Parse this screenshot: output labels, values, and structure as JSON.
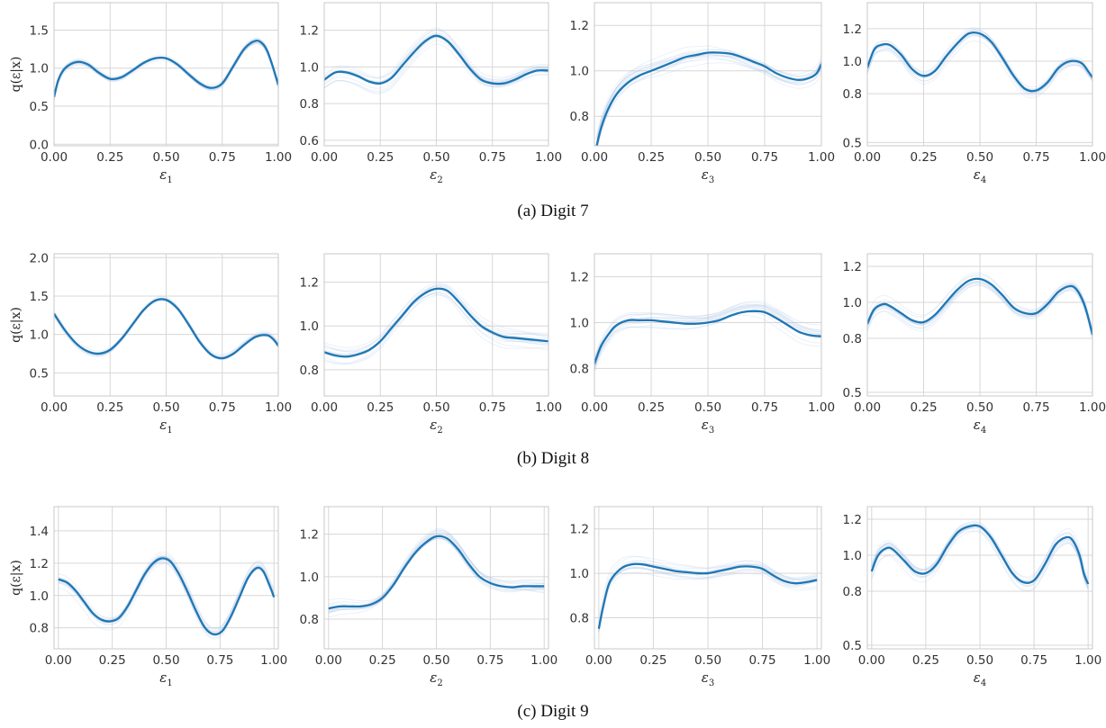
{
  "chart_data": [
    {
      "group": "Digit 7",
      "caption": "(a) Digit 7",
      "panels": [
        {
          "type": "line",
          "xlabel": "ε",
          "xsub": "1",
          "ylabel": "q(ε|x)",
          "xlim": [
            0,
            1
          ],
          "ylim": [
            -0.02,
            1.86
          ],
          "xticks": [
            "0.00",
            "0.25",
            "0.50",
            "0.75",
            "1.00"
          ],
          "yticks": [
            "0.0",
            "0.5",
            "1.0",
            "1.5"
          ],
          "series": [
            {
              "x": [
                0,
                0.02,
                0.05,
                0.1,
                0.15,
                0.2,
                0.25,
                0.3,
                0.35,
                0.4,
                0.45,
                0.5,
                0.55,
                0.6,
                0.65,
                0.7,
                0.75,
                0.8,
                0.85,
                0.9,
                0.93,
                0.95,
                0.97,
                0.99,
                1.0
              ],
              "y": [
                0.62,
                0.85,
                1.0,
                1.08,
                1.05,
                0.94,
                0.86,
                0.88,
                0.97,
                1.07,
                1.13,
                1.13,
                1.05,
                0.92,
                0.8,
                0.74,
                0.8,
                1.03,
                1.26,
                1.36,
                1.32,
                1.23,
                1.07,
                0.88,
                0.78
              ]
            }
          ]
        },
        {
          "type": "line",
          "xlabel": "ε",
          "xsub": "2",
          "ylabel": "",
          "xlim": [
            0,
            1
          ],
          "ylim": [
            0.57,
            1.35
          ],
          "xticks": [
            "0.00",
            "0.25",
            "0.50",
            "0.75",
            "1.00"
          ],
          "yticks": [
            "0.6",
            "0.8",
            "1.0",
            "1.2"
          ],
          "series": [
            {
              "x": [
                0,
                0.05,
                0.1,
                0.15,
                0.2,
                0.25,
                0.3,
                0.35,
                0.4,
                0.45,
                0.5,
                0.55,
                0.6,
                0.65,
                0.7,
                0.75,
                0.8,
                0.85,
                0.9,
                0.95,
                1.0
              ],
              "y": [
                0.93,
                0.97,
                0.97,
                0.95,
                0.92,
                0.91,
                0.94,
                1.01,
                1.08,
                1.14,
                1.17,
                1.14,
                1.07,
                0.99,
                0.93,
                0.91,
                0.91,
                0.93,
                0.96,
                0.98,
                0.98
              ]
            }
          ]
        },
        {
          "type": "line",
          "xlabel": "ε",
          "xsub": "3",
          "ylabel": "",
          "xlim": [
            0,
            1
          ],
          "ylim": [
            0.67,
            1.3
          ],
          "xticks": [
            "0.00",
            "0.25",
            "0.50",
            "0.75",
            "1.00"
          ],
          "yticks": [
            "0.8",
            "1.0",
            "1.2"
          ],
          "series": [
            {
              "x": [
                0.01,
                0.03,
                0.06,
                0.1,
                0.15,
                0.2,
                0.25,
                0.3,
                0.35,
                0.4,
                0.45,
                0.5,
                0.55,
                0.6,
                0.65,
                0.7,
                0.75,
                0.8,
                0.85,
                0.9,
                0.95,
                0.98,
                1.0
              ],
              "y": [
                0.67,
                0.75,
                0.83,
                0.9,
                0.95,
                0.98,
                1.0,
                1.02,
                1.04,
                1.06,
                1.07,
                1.08,
                1.08,
                1.075,
                1.06,
                1.04,
                1.02,
                0.99,
                0.97,
                0.96,
                0.97,
                0.99,
                1.03
              ]
            }
          ]
        },
        {
          "type": "line",
          "xlabel": "ε",
          "xsub": "4",
          "ylabel": "",
          "xlim": [
            0,
            1
          ],
          "ylim": [
            0.48,
            1.36
          ],
          "xticks": [
            "0.00",
            "0.25",
            "0.50",
            "0.75",
            "1.00"
          ],
          "yticks": [
            "0.5",
            "0.8",
            "1.0",
            "1.2"
          ],
          "series": [
            {
              "x": [
                0,
                0.03,
                0.06,
                0.1,
                0.15,
                0.2,
                0.25,
                0.3,
                0.35,
                0.4,
                0.45,
                0.5,
                0.55,
                0.6,
                0.65,
                0.7,
                0.75,
                0.8,
                0.85,
                0.9,
                0.95,
                0.98,
                1.0
              ],
              "y": [
                0.96,
                1.07,
                1.1,
                1.1,
                1.04,
                0.95,
                0.91,
                0.94,
                1.03,
                1.11,
                1.17,
                1.17,
                1.12,
                1.02,
                0.91,
                0.83,
                0.82,
                0.87,
                0.96,
                1.0,
                0.99,
                0.94,
                0.9
              ]
            }
          ]
        }
      ]
    },
    {
      "group": "Digit 8",
      "caption": "(b) Digit 8",
      "panels": [
        {
          "type": "line",
          "xlabel": "ε",
          "xsub": "1",
          "ylabel": "q(ε|x)",
          "xlim": [
            0,
            1
          ],
          "ylim": [
            0.2,
            2.05
          ],
          "xticks": [
            "0.00",
            "0.25",
            "0.50",
            "0.75",
            "1.00"
          ],
          "yticks": [
            "0.5",
            "1.0",
            "1.5",
            "2.0"
          ],
          "series": [
            {
              "x": [
                0,
                0.05,
                0.1,
                0.15,
                0.2,
                0.25,
                0.3,
                0.35,
                0.4,
                0.45,
                0.5,
                0.55,
                0.6,
                0.65,
                0.7,
                0.75,
                0.8,
                0.85,
                0.9,
                0.95,
                0.98,
                1.0
              ],
              "y": [
                1.27,
                1.05,
                0.88,
                0.78,
                0.75,
                0.8,
                0.94,
                1.13,
                1.32,
                1.44,
                1.45,
                1.34,
                1.13,
                0.9,
                0.74,
                0.69,
                0.75,
                0.87,
                0.97,
                0.99,
                0.93,
                0.85
              ]
            }
          ]
        },
        {
          "type": "line",
          "xlabel": "ε",
          "xsub": "2",
          "ylabel": "",
          "xlim": [
            0,
            1
          ],
          "ylim": [
            0.68,
            1.33
          ],
          "xticks": [
            "0.00",
            "0.25",
            "0.50",
            "0.75",
            "1.00"
          ],
          "yticks": [
            "0.8",
            "1.0",
            "1.2"
          ],
          "series": [
            {
              "x": [
                0,
                0.05,
                0.1,
                0.15,
                0.2,
                0.25,
                0.3,
                0.35,
                0.4,
                0.45,
                0.5,
                0.55,
                0.6,
                0.65,
                0.7,
                0.75,
                0.8,
                0.85,
                0.9,
                0.95,
                1.0
              ],
              "y": [
                0.88,
                0.865,
                0.86,
                0.87,
                0.89,
                0.93,
                0.99,
                1.05,
                1.11,
                1.15,
                1.17,
                1.16,
                1.11,
                1.05,
                1.0,
                0.97,
                0.95,
                0.945,
                0.94,
                0.935,
                0.93
              ]
            }
          ]
        },
        {
          "type": "line",
          "xlabel": "ε",
          "xsub": "3",
          "ylabel": "",
          "xlim": [
            0,
            1
          ],
          "ylim": [
            0.68,
            1.3
          ],
          "xticks": [
            "0.00",
            "0.25",
            "0.50",
            "0.75",
            "1.00"
          ],
          "yticks": [
            "0.8",
            "1.0",
            "1.2"
          ],
          "series": [
            {
              "x": [
                0,
                0.03,
                0.07,
                0.1,
                0.15,
                0.2,
                0.25,
                0.3,
                0.35,
                0.4,
                0.45,
                0.5,
                0.55,
                0.6,
                0.65,
                0.7,
                0.75,
                0.8,
                0.85,
                0.9,
                0.95,
                1.0
              ],
              "y": [
                0.82,
                0.9,
                0.96,
                0.99,
                1.01,
                1.01,
                1.01,
                1.005,
                1.0,
                0.995,
                0.995,
                1.0,
                1.01,
                1.03,
                1.045,
                1.05,
                1.045,
                1.02,
                0.99,
                0.96,
                0.945,
                0.94
              ]
            }
          ]
        },
        {
          "type": "line",
          "xlabel": "ε",
          "xsub": "4",
          "ylabel": "",
          "xlim": [
            0,
            1
          ],
          "ylim": [
            0.48,
            1.27
          ],
          "xticks": [
            "0.00",
            "0.25",
            "0.50",
            "0.75",
            "1.00"
          ],
          "yticks": [
            "0.5",
            "0.8",
            "1.0",
            "1.2"
          ],
          "series": [
            {
              "x": [
                0,
                0.03,
                0.07,
                0.1,
                0.15,
                0.2,
                0.25,
                0.3,
                0.35,
                0.4,
                0.45,
                0.5,
                0.55,
                0.6,
                0.65,
                0.7,
                0.75,
                0.8,
                0.85,
                0.9,
                0.93,
                0.96,
                0.98,
                1.0
              ],
              "y": [
                0.88,
                0.96,
                0.99,
                0.98,
                0.94,
                0.9,
                0.89,
                0.93,
                1.0,
                1.07,
                1.12,
                1.13,
                1.1,
                1.04,
                0.97,
                0.94,
                0.94,
                0.99,
                1.06,
                1.09,
                1.07,
                1.0,
                0.92,
                0.82
              ]
            }
          ]
        }
      ]
    },
    {
      "group": "Digit 9",
      "caption": "(c) Digit 9",
      "panels": [
        {
          "type": "line",
          "xlabel": "ε",
          "xsub": "1",
          "ylabel": "q(ε|x)",
          "xlim": [
            -0.02,
            1.02
          ],
          "ylim": [
            0.67,
            1.55
          ],
          "xticks": [
            "0.00",
            "0.25",
            "0.50",
            "0.75",
            "1.00"
          ],
          "yticks": [
            "0.8",
            "1.0",
            "1.2",
            "1.4"
          ],
          "series": [
            {
              "x": [
                0,
                0.04,
                0.08,
                0.12,
                0.16,
                0.2,
                0.24,
                0.28,
                0.32,
                0.36,
                0.4,
                0.44,
                0.48,
                0.52,
                0.56,
                0.6,
                0.64,
                0.68,
                0.72,
                0.76,
                0.8,
                0.84,
                0.88,
                0.92,
                0.95,
                0.98,
                1.0
              ],
              "y": [
                1.1,
                1.08,
                1.03,
                0.96,
                0.89,
                0.85,
                0.84,
                0.86,
                0.93,
                1.03,
                1.13,
                1.2,
                1.23,
                1.21,
                1.13,
                1.02,
                0.9,
                0.8,
                0.76,
                0.78,
                0.87,
                0.99,
                1.11,
                1.17,
                1.15,
                1.06,
                0.99
              ]
            }
          ]
        },
        {
          "type": "line",
          "xlabel": "ε",
          "xsub": "2",
          "ylabel": "",
          "xlim": [
            -0.02,
            1.02
          ],
          "ylim": [
            0.66,
            1.33
          ],
          "xticks": [
            "0.00",
            "0.25",
            "0.50",
            "0.75",
            "1.00"
          ],
          "yticks": [
            "0.8",
            "1.0",
            "1.2"
          ],
          "series": [
            {
              "x": [
                0,
                0.05,
                0.1,
                0.15,
                0.2,
                0.25,
                0.3,
                0.35,
                0.4,
                0.45,
                0.5,
                0.55,
                0.6,
                0.65,
                0.7,
                0.75,
                0.8,
                0.85,
                0.9,
                0.95,
                1.0
              ],
              "y": [
                0.85,
                0.86,
                0.86,
                0.86,
                0.87,
                0.9,
                0.96,
                1.04,
                1.11,
                1.16,
                1.19,
                1.18,
                1.13,
                1.06,
                1.0,
                0.97,
                0.955,
                0.95,
                0.955,
                0.955,
                0.955
              ]
            }
          ]
        },
        {
          "type": "line",
          "xlabel": "ε",
          "xsub": "3",
          "ylabel": "",
          "xlim": [
            -0.02,
            1.02
          ],
          "ylim": [
            0.66,
            1.3
          ],
          "xticks": [
            "0.00",
            "0.25",
            "0.50",
            "0.75",
            "1.00"
          ],
          "yticks": [
            "0.8",
            "1.0",
            "1.2"
          ],
          "series": [
            {
              "x": [
                0,
                0.02,
                0.05,
                0.1,
                0.15,
                0.2,
                0.25,
                0.3,
                0.35,
                0.4,
                0.45,
                0.5,
                0.55,
                0.6,
                0.65,
                0.7,
                0.75,
                0.8,
                0.85,
                0.9,
                0.95,
                1.0
              ],
              "y": [
                0.75,
                0.85,
                0.96,
                1.02,
                1.04,
                1.04,
                1.03,
                1.02,
                1.01,
                1.005,
                1.0,
                1.0,
                1.01,
                1.02,
                1.03,
                1.03,
                1.02,
                0.99,
                0.965,
                0.955,
                0.96,
                0.97
              ]
            }
          ]
        },
        {
          "type": "line",
          "xlabel": "ε",
          "xsub": "4",
          "ylabel": "",
          "xlim": [
            -0.02,
            1.02
          ],
          "ylim": [
            0.48,
            1.27
          ],
          "xticks": [
            "0.00",
            "0.25",
            "0.50",
            "0.75",
            "1.00"
          ],
          "yticks": [
            "0.5",
            "0.8",
            "1.0",
            "1.2"
          ],
          "series": [
            {
              "x": [
                0,
                0.03,
                0.07,
                0.1,
                0.15,
                0.2,
                0.25,
                0.3,
                0.35,
                0.4,
                0.45,
                0.5,
                0.55,
                0.6,
                0.65,
                0.7,
                0.75,
                0.8,
                0.85,
                0.9,
                0.93,
                0.96,
                0.98,
                1.0
              ],
              "y": [
                0.91,
                1.0,
                1.04,
                1.03,
                0.97,
                0.91,
                0.9,
                0.95,
                1.05,
                1.13,
                1.16,
                1.16,
                1.1,
                1.0,
                0.9,
                0.85,
                0.86,
                0.95,
                1.06,
                1.1,
                1.08,
                1.0,
                0.9,
                0.84
              ]
            }
          ]
        }
      ]
    }
  ]
}
